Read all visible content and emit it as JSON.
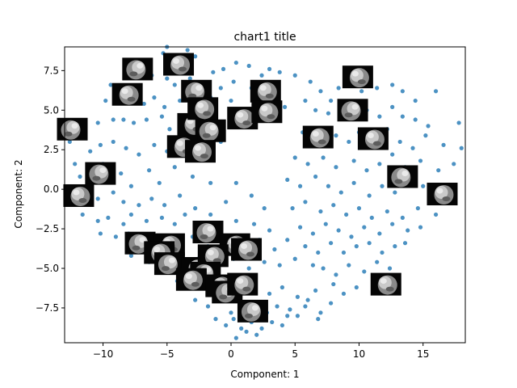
{
  "chart_data": {
    "type": "scatter",
    "title": "chart1 title",
    "xlabel": "Component: 1",
    "ylabel": "Component: 2",
    "xlim": [
      -13.0,
      18.3
    ],
    "ylim": [
      -9.7,
      9.0
    ],
    "xticks": [
      -10,
      -5,
      0,
      5,
      10,
      15
    ],
    "yticks": [
      -7.5,
      -5.0,
      -2.5,
      0.0,
      2.5,
      5.0,
      7.5
    ],
    "xtick_labels": [
      "−10",
      "−5",
      "0",
      "5",
      "10",
      "15"
    ],
    "ytick_labels": [
      "−7.5",
      "−5.0",
      "−2.5",
      "0.0",
      "2.5",
      "5.0",
      "7.5"
    ],
    "grid": false,
    "point_color": "#1f77b4",
    "thumbnail": "grayscale face image",
    "points": [
      [
        -5.3,
        8.6
      ],
      [
        -5.0,
        9.0
      ],
      [
        -4.2,
        8.2
      ],
      [
        -3.4,
        8.8
      ],
      [
        -2.8,
        8.4
      ],
      [
        -1.4,
        7.4
      ],
      [
        -0.6,
        7.6
      ],
      [
        0.4,
        8.0
      ],
      [
        1.4,
        7.8
      ],
      [
        2.4,
        7.2
      ],
      [
        3.0,
        7.6
      ],
      [
        3.8,
        7.4
      ],
      [
        -6.2,
        7.2
      ],
      [
        -5.0,
        7.0
      ],
      [
        -4.4,
        6.6
      ],
      [
        -3.2,
        7.0
      ],
      [
        -2.4,
        6.4
      ],
      [
        -1.6,
        5.8
      ],
      [
        -0.8,
        6.4
      ],
      [
        0.2,
        6.8
      ],
      [
        1.6,
        6.4
      ],
      [
        2.8,
        6.6
      ],
      [
        3.6,
        5.8
      ],
      [
        4.2,
        5.2
      ],
      [
        -9.4,
        6.6
      ],
      [
        -9.8,
        5.6
      ],
      [
        -8.6,
        5.6
      ],
      [
        -7.8,
        6.0
      ],
      [
        -6.8,
        5.4
      ],
      [
        -6.0,
        5.8
      ],
      [
        -5.2,
        5.2
      ],
      [
        -4.0,
        5.6
      ],
      [
        -2.0,
        5.0
      ],
      [
        -1.2,
        4.6
      ],
      [
        0.0,
        5.6
      ],
      [
        3.4,
        4.6
      ],
      [
        -10.4,
        4.2
      ],
      [
        -9.2,
        4.4
      ],
      [
        -8.4,
        4.4
      ],
      [
        -7.6,
        4.2
      ],
      [
        -6.6,
        4.4
      ],
      [
        -5.4,
        4.6
      ],
      [
        -4.8,
        3.8
      ],
      [
        -3.6,
        4.0
      ],
      [
        -2.6,
        3.4
      ],
      [
        -1.8,
        3.6
      ],
      [
        -0.6,
        4.2
      ],
      [
        1.2,
        4.0
      ],
      [
        -12.6,
        3.0
      ],
      [
        -11.4,
        3.4
      ],
      [
        -11.0,
        2.4
      ],
      [
        -10.2,
        2.8
      ],
      [
        -9.2,
        3.0
      ],
      [
        -8.2,
        2.6
      ],
      [
        -7.2,
        2.2
      ],
      [
        -6.0,
        2.8
      ],
      [
        -5.0,
        2.4
      ],
      [
        -4.0,
        3.0
      ],
      [
        -2.2,
        2.6
      ],
      [
        -0.8,
        3.0
      ],
      [
        -12.2,
        1.6
      ],
      [
        -11.8,
        0.8
      ],
      [
        -11.0,
        1.2
      ],
      [
        -10.0,
        1.6
      ],
      [
        -9.2,
        0.6
      ],
      [
        -8.6,
        1.0
      ],
      [
        -7.8,
        0.2
      ],
      [
        -6.4,
        1.2
      ],
      [
        -5.6,
        0.4
      ],
      [
        -4.4,
        1.4
      ],
      [
        -3.0,
        0.8
      ],
      [
        -1.6,
        0.4
      ],
      [
        0.4,
        0.4
      ],
      [
        -12.4,
        -0.4
      ],
      [
        -11.2,
        -0.2
      ],
      [
        -10.4,
        -0.6
      ],
      [
        -9.2,
        -0.2
      ],
      [
        -8.4,
        -0.8
      ],
      [
        -7.2,
        -1.0
      ],
      [
        -6.2,
        -0.6
      ],
      [
        -5.2,
        -1.0
      ],
      [
        -4.0,
        -0.4
      ],
      [
        -2.8,
        -1.2
      ],
      [
        -1.6,
        -1.6
      ],
      [
        -0.4,
        -0.8
      ],
      [
        1.6,
        -0.4
      ],
      [
        2.6,
        -1.2
      ],
      [
        -11.6,
        -1.6
      ],
      [
        -10.4,
        -2.0
      ],
      [
        -9.6,
        -1.8
      ],
      [
        -8.4,
        -2.2
      ],
      [
        -7.8,
        -1.6
      ],
      [
        -6.6,
        -2.0
      ],
      [
        -5.4,
        -1.8
      ],
      [
        -4.4,
        -2.2
      ],
      [
        -3.6,
        -1.6
      ],
      [
        -2.4,
        -2.2
      ],
      [
        -1.0,
        -2.6
      ],
      [
        0.4,
        -2.0
      ],
      [
        1.8,
        -2.2
      ],
      [
        3.0,
        -2.6
      ],
      [
        -10.2,
        -2.8
      ],
      [
        -9.0,
        -3.0
      ],
      [
        -8.0,
        -2.8
      ],
      [
        -7.2,
        -3.4
      ],
      [
        -6.0,
        -3.2
      ],
      [
        -5.2,
        -3.8
      ],
      [
        -4.0,
        -3.4
      ],
      [
        -3.0,
        -3.0
      ],
      [
        -1.8,
        -3.6
      ],
      [
        -0.6,
        -3.2
      ],
      [
        0.8,
        -3.6
      ],
      [
        2.2,
        -3.2
      ],
      [
        3.4,
        -3.8
      ],
      [
        4.4,
        -3.2
      ],
      [
        -7.8,
        -4.2
      ],
      [
        -6.4,
        -4.6
      ],
      [
        -5.2,
        -4.4
      ],
      [
        -4.0,
        -5.0
      ],
      [
        -2.6,
        -4.4
      ],
      [
        -1.2,
        -4.8
      ],
      [
        0.2,
        -4.4
      ],
      [
        1.4,
        -5.0
      ],
      [
        2.6,
        -4.6
      ],
      [
        3.8,
        -4.8
      ],
      [
        5.0,
        -4.4
      ],
      [
        6.4,
        -4.8
      ],
      [
        -4.2,
        -5.8
      ],
      [
        -3.2,
        -6.2
      ],
      [
        -2.4,
        -5.6
      ],
      [
        -1.4,
        -6.4
      ],
      [
        -0.4,
        -5.8
      ],
      [
        0.8,
        -6.2
      ],
      [
        1.8,
        -5.8
      ],
      [
        3.0,
        -6.6
      ],
      [
        4.0,
        -6.2
      ],
      [
        5.2,
        -6.8
      ],
      [
        6.6,
        -6.4
      ],
      [
        8.0,
        -6.0
      ],
      [
        -2.8,
        -7.0
      ],
      [
        -1.8,
        -7.4
      ],
      [
        -1.0,
        -7.0
      ],
      [
        0.0,
        -7.8
      ],
      [
        0.8,
        -7.2
      ],
      [
        1.6,
        -7.6
      ],
      [
        2.8,
        -7.8
      ],
      [
        3.6,
        -7.4
      ],
      [
        4.6,
        -7.6
      ],
      [
        5.8,
        -7.4
      ],
      [
        7.0,
        -7.8
      ],
      [
        7.8,
        -7.2
      ],
      [
        -1.2,
        -8.2
      ],
      [
        -0.4,
        -8.6
      ],
      [
        0.2,
        -8.2
      ],
      [
        0.8,
        -8.8
      ],
      [
        1.6,
        -8.4
      ],
      [
        2.4,
        -8.8
      ],
      [
        3.2,
        -8.4
      ],
      [
        4.0,
        -8.6
      ],
      [
        1.2,
        -9.0
      ],
      [
        2.0,
        -9.2
      ],
      [
        0.4,
        -9.4
      ],
      [
        5.0,
        7.2
      ],
      [
        6.2,
        6.8
      ],
      [
        7.0,
        6.2
      ],
      [
        7.8,
        5.6
      ],
      [
        8.4,
        6.4
      ],
      [
        9.4,
        6.8
      ],
      [
        10.2,
        6.2
      ],
      [
        11.4,
        6.4
      ],
      [
        12.6,
        6.6
      ],
      [
        13.4,
        6.2
      ],
      [
        14.4,
        5.6
      ],
      [
        16.0,
        6.2
      ],
      [
        5.8,
        5.6
      ],
      [
        6.6,
        5.0
      ],
      [
        7.6,
        4.8
      ],
      [
        8.6,
        5.2
      ],
      [
        9.4,
        4.6
      ],
      [
        10.6,
        5.0
      ],
      [
        11.6,
        4.6
      ],
      [
        12.6,
        5.2
      ],
      [
        13.4,
        4.6
      ],
      [
        14.4,
        4.4
      ],
      [
        15.4,
        4.0
      ],
      [
        17.8,
        4.2
      ],
      [
        5.6,
        3.6
      ],
      [
        6.4,
        3.2
      ],
      [
        7.2,
        2.8
      ],
      [
        8.2,
        3.4
      ],
      [
        9.2,
        3.0
      ],
      [
        10.0,
        3.6
      ],
      [
        11.2,
        3.2
      ],
      [
        12.2,
        3.8
      ],
      [
        13.2,
        3.0
      ],
      [
        14.2,
        2.6
      ],
      [
        15.2,
        3.4
      ],
      [
        16.6,
        2.8
      ],
      [
        18.0,
        2.6
      ],
      [
        5.0,
        2.0
      ],
      [
        6.0,
        1.6
      ],
      [
        7.2,
        2.0
      ],
      [
        8.2,
        1.4
      ],
      [
        9.6,
        1.8
      ],
      [
        10.6,
        1.2
      ],
      [
        11.6,
        1.6
      ],
      [
        12.6,
        2.2
      ],
      [
        13.6,
        1.4
      ],
      [
        14.8,
        1.8
      ],
      [
        16.2,
        1.2
      ],
      [
        17.4,
        1.6
      ],
      [
        4.4,
        0.6
      ],
      [
        5.4,
        0.2
      ],
      [
        6.6,
        0.8
      ],
      [
        7.6,
        0.2
      ],
      [
        8.6,
        -0.2
      ],
      [
        9.6,
        0.4
      ],
      [
        10.8,
        -0.4
      ],
      [
        11.8,
        0.2
      ],
      [
        12.8,
        -0.2
      ],
      [
        13.8,
        0.4
      ],
      [
        15.0,
        0.2
      ],
      [
        4.8,
        -1.2
      ],
      [
        5.8,
        -0.8
      ],
      [
        7.0,
        -1.4
      ],
      [
        8.0,
        -1.0
      ],
      [
        9.0,
        -1.6
      ],
      [
        10.0,
        -1.2
      ],
      [
        11.0,
        -1.8
      ],
      [
        12.2,
        -1.4
      ],
      [
        13.4,
        -1.8
      ],
      [
        14.6,
        -1.2
      ],
      [
        16.0,
        -1.6
      ],
      [
        5.4,
        -2.4
      ],
      [
        6.4,
        -2.8
      ],
      [
        7.4,
        -2.2
      ],
      [
        8.4,
        -2.6
      ],
      [
        9.4,
        -3.0
      ],
      [
        10.4,
        -2.4
      ],
      [
        11.6,
        -2.8
      ],
      [
        12.6,
        -2.2
      ],
      [
        13.8,
        -2.6
      ],
      [
        14.8,
        -2.4
      ],
      [
        5.8,
        -3.6
      ],
      [
        6.8,
        -4.0
      ],
      [
        7.8,
        -3.4
      ],
      [
        8.8,
        -4.0
      ],
      [
        9.8,
        -3.6
      ],
      [
        10.8,
        -3.4
      ],
      [
        11.8,
        -4.0
      ],
      [
        12.8,
        -3.6
      ],
      [
        13.6,
        -3.4
      ],
      [
        7.2,
        -5.0
      ],
      [
        8.2,
        -5.4
      ],
      [
        9.2,
        -4.8
      ],
      [
        10.4,
        -5.2
      ],
      [
        11.4,
        -4.6
      ],
      [
        12.4,
        -5.0
      ],
      [
        9.8,
        -6.2
      ],
      [
        8.8,
        -6.6
      ],
      [
        11.6,
        -6.0
      ],
      [
        5.2,
        -8.0
      ],
      [
        6.0,
        -7.0
      ],
      [
        6.8,
        -8.2
      ],
      [
        4.4,
        -8.0
      ]
    ],
    "thumbnails": [
      [
        -7.3,
        7.6
      ],
      [
        -4.1,
        7.9
      ],
      [
        -8.1,
        6.0
      ],
      [
        -2.7,
        6.2
      ],
      [
        2.7,
        6.2
      ],
      [
        9.9,
        7.1
      ],
      [
        -12.4,
        3.8
      ],
      [
        -3.0,
        4.1
      ],
      [
        -2.2,
        5.1
      ],
      [
        -1.6,
        3.7
      ],
      [
        0.9,
        4.5
      ],
      [
        2.8,
        4.9
      ],
      [
        9.5,
        5.0
      ],
      [
        6.8,
        3.3
      ],
      [
        11.1,
        3.2
      ],
      [
        -10.2,
        1.0
      ],
      [
        -3.8,
        2.7
      ],
      [
        -2.4,
        2.4
      ],
      [
        13.4,
        0.8
      ],
      [
        -11.9,
        -0.4
      ],
      [
        16.5,
        -0.3
      ],
      [
        -1.8,
        -2.7
      ],
      [
        0.3,
        -3.5
      ],
      [
        1.2,
        -3.8
      ],
      [
        -7.1,
        -3.4
      ],
      [
        -4.8,
        -3.5
      ],
      [
        -5.6,
        -4.0
      ],
      [
        -4.8,
        -4.7
      ],
      [
        -2.7,
        -5.0
      ],
      [
        -1.4,
        -4.2
      ],
      [
        -2.0,
        -5.3
      ],
      [
        -3.1,
        -5.7
      ],
      [
        -0.8,
        -6.1
      ],
      [
        -0.3,
        -6.5
      ],
      [
        0.9,
        -6.0
      ],
      [
        12.1,
        -6.0
      ],
      [
        1.7,
        -7.7
      ]
    ]
  }
}
